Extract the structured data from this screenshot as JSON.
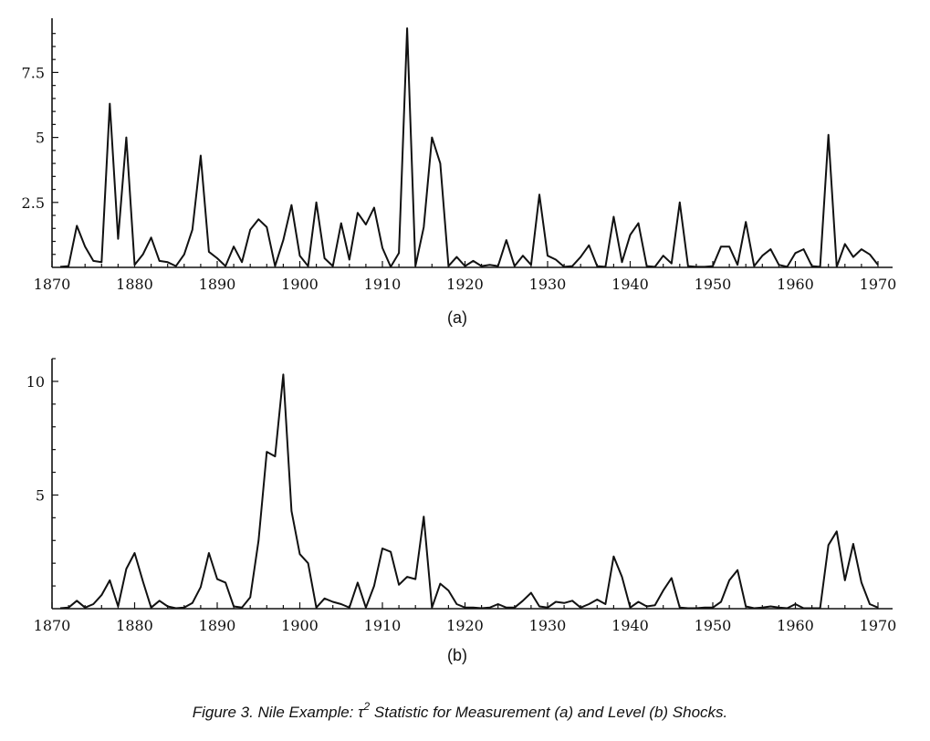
{
  "caption": {
    "prefix": "Figure 3.   Nile Example: τ",
    "superscript": "2",
    "suffix": " Statistic for Measurement (a) and Level (b) Shocks."
  },
  "chart_data": [
    {
      "type": "line",
      "panel_label": "(a)",
      "xlabel": "",
      "ylabel": "",
      "xlim": [
        1871,
        1970
      ],
      "ylim": [
        0,
        9.2
      ],
      "x_ticks": [
        1870,
        1880,
        1890,
        1900,
        1910,
        1920,
        1930,
        1940,
        1950,
        1960,
        1970
      ],
      "y_ticks": [
        2.5,
        5,
        7.5
      ],
      "y_tick_labels": [
        "2.5",
        "5",
        "7.5"
      ],
      "grid": false,
      "series": [
        {
          "x": [
            1871,
            1872,
            1873,
            1874,
            1875,
            1876,
            1877,
            1878,
            1879,
            1880,
            1881,
            1882,
            1883,
            1884,
            1885,
            1886,
            1887,
            1888,
            1889,
            1890,
            1891,
            1892,
            1893,
            1894,
            1895,
            1896,
            1897,
            1898,
            1899,
            1900,
            1901,
            1902,
            1903,
            1904,
            1905,
            1906,
            1907,
            1908,
            1909,
            1910,
            1911,
            1912,
            1913,
            1914,
            1915,
            1916,
            1917,
            1918,
            1919,
            1920,
            1921,
            1922,
            1923,
            1924,
            1925,
            1926,
            1927,
            1928,
            1929,
            1930,
            1931,
            1932,
            1933,
            1934,
            1935,
            1936,
            1937,
            1938,
            1939,
            1940,
            1941,
            1942,
            1943,
            1944,
            1945,
            1946,
            1947,
            1948,
            1949,
            1950,
            1951,
            1952,
            1953,
            1954,
            1955,
            1956,
            1957,
            1958,
            1959,
            1960,
            1961,
            1962,
            1963,
            1964,
            1965,
            1966,
            1967,
            1968,
            1969,
            1970
          ],
          "values": [
            0.02,
            0.05,
            1.6,
            0.8,
            0.25,
            0.2,
            6.3,
            1.1,
            5.0,
            0.1,
            0.5,
            1.15,
            0.25,
            0.2,
            0.05,
            0.5,
            1.45,
            4.3,
            0.6,
            0.35,
            0.05,
            0.8,
            0.2,
            1.45,
            1.85,
            1.55,
            0.05,
            1.05,
            2.4,
            0.45,
            0.05,
            2.5,
            0.35,
            0.05,
            1.7,
            0.3,
            2.1,
            1.65,
            2.3,
            0.75,
            0.02,
            0.55,
            9.2,
            0.05,
            1.55,
            5.0,
            4.0,
            0.05,
            0.4,
            0.05,
            0.25,
            0.05,
            0.1,
            0.05,
            1.05,
            0.05,
            0.45,
            0.1,
            2.8,
            0.45,
            0.3,
            0.02,
            0.05,
            0.4,
            0.85,
            0.05,
            0.02,
            1.95,
            0.2,
            1.25,
            1.7,
            0.05,
            0.02,
            0.45,
            0.15,
            2.5,
            0.05,
            0.02,
            0.02,
            0.05,
            0.8,
            0.8,
            0.1,
            1.75,
            0.05,
            0.45,
            0.7,
            0.1,
            0.02,
            0.55,
            0.7,
            0.05,
            0.02,
            5.1,
            0.02,
            0.9,
            0.4,
            0.7,
            0.5,
            0.1
          ]
        }
      ]
    },
    {
      "type": "line",
      "panel_label": "(b)",
      "xlabel": "",
      "ylabel": "",
      "xlim": [
        1871,
        1970
      ],
      "ylim": [
        0,
        11
      ],
      "x_ticks": [
        1870,
        1880,
        1890,
        1900,
        1910,
        1920,
        1930,
        1940,
        1950,
        1960,
        1970
      ],
      "y_ticks": [
        5,
        10
      ],
      "y_tick_labels": [
        "5",
        "10"
      ],
      "grid": false,
      "series": [
        {
          "x": [
            1871,
            1872,
            1873,
            1874,
            1875,
            1876,
            1877,
            1878,
            1879,
            1880,
            1881,
            1882,
            1883,
            1884,
            1885,
            1886,
            1887,
            1888,
            1889,
            1890,
            1891,
            1892,
            1893,
            1894,
            1895,
            1896,
            1897,
            1898,
            1899,
            1900,
            1901,
            1902,
            1903,
            1904,
            1905,
            1906,
            1907,
            1908,
            1909,
            1910,
            1911,
            1912,
            1913,
            1914,
            1915,
            1916,
            1917,
            1918,
            1919,
            1920,
            1921,
            1922,
            1923,
            1924,
            1925,
            1926,
            1927,
            1928,
            1929,
            1930,
            1931,
            1932,
            1933,
            1934,
            1935,
            1936,
            1937,
            1938,
            1939,
            1940,
            1941,
            1942,
            1943,
            1944,
            1945,
            1946,
            1947,
            1948,
            1949,
            1950,
            1951,
            1952,
            1953,
            1954,
            1955,
            1956,
            1957,
            1958,
            1959,
            1960,
            1961,
            1962,
            1963,
            1964,
            1965,
            1966,
            1967,
            1968,
            1969,
            1970
          ],
          "values": [
            0.02,
            0.05,
            0.35,
            0.05,
            0.2,
            0.6,
            1.25,
            0.1,
            1.75,
            2.45,
            1.2,
            0.05,
            0.35,
            0.1,
            0.02,
            0.05,
            0.25,
            0.95,
            2.45,
            1.3,
            1.15,
            0.1,
            0.05,
            0.5,
            3.0,
            6.9,
            6.7,
            10.3,
            4.3,
            2.4,
            2.0,
            0.05,
            0.45,
            0.3,
            0.2,
            0.05,
            1.15,
            0.05,
            1.0,
            2.65,
            2.5,
            1.05,
            1.4,
            1.3,
            4.05,
            0.05,
            1.1,
            0.8,
            0.2,
            0.05,
            0.05,
            0.02,
            0.05,
            0.2,
            0.05,
            0.05,
            0.35,
            0.7,
            0.1,
            0.05,
            0.3,
            0.25,
            0.35,
            0.05,
            0.2,
            0.4,
            0.2,
            2.3,
            1.4,
            0.05,
            0.3,
            0.1,
            0.15,
            0.8,
            1.35,
            0.05,
            0.02,
            0.02,
            0.05,
            0.05,
            0.3,
            1.25,
            1.7,
            0.1,
            0.02,
            0.05,
            0.1,
            0.05,
            0.02,
            0.2,
            0.02,
            0.02,
            0.02,
            2.8,
            3.4,
            1.25,
            2.85,
            1.15,
            0.2,
            0.05
          ]
        }
      ]
    }
  ]
}
